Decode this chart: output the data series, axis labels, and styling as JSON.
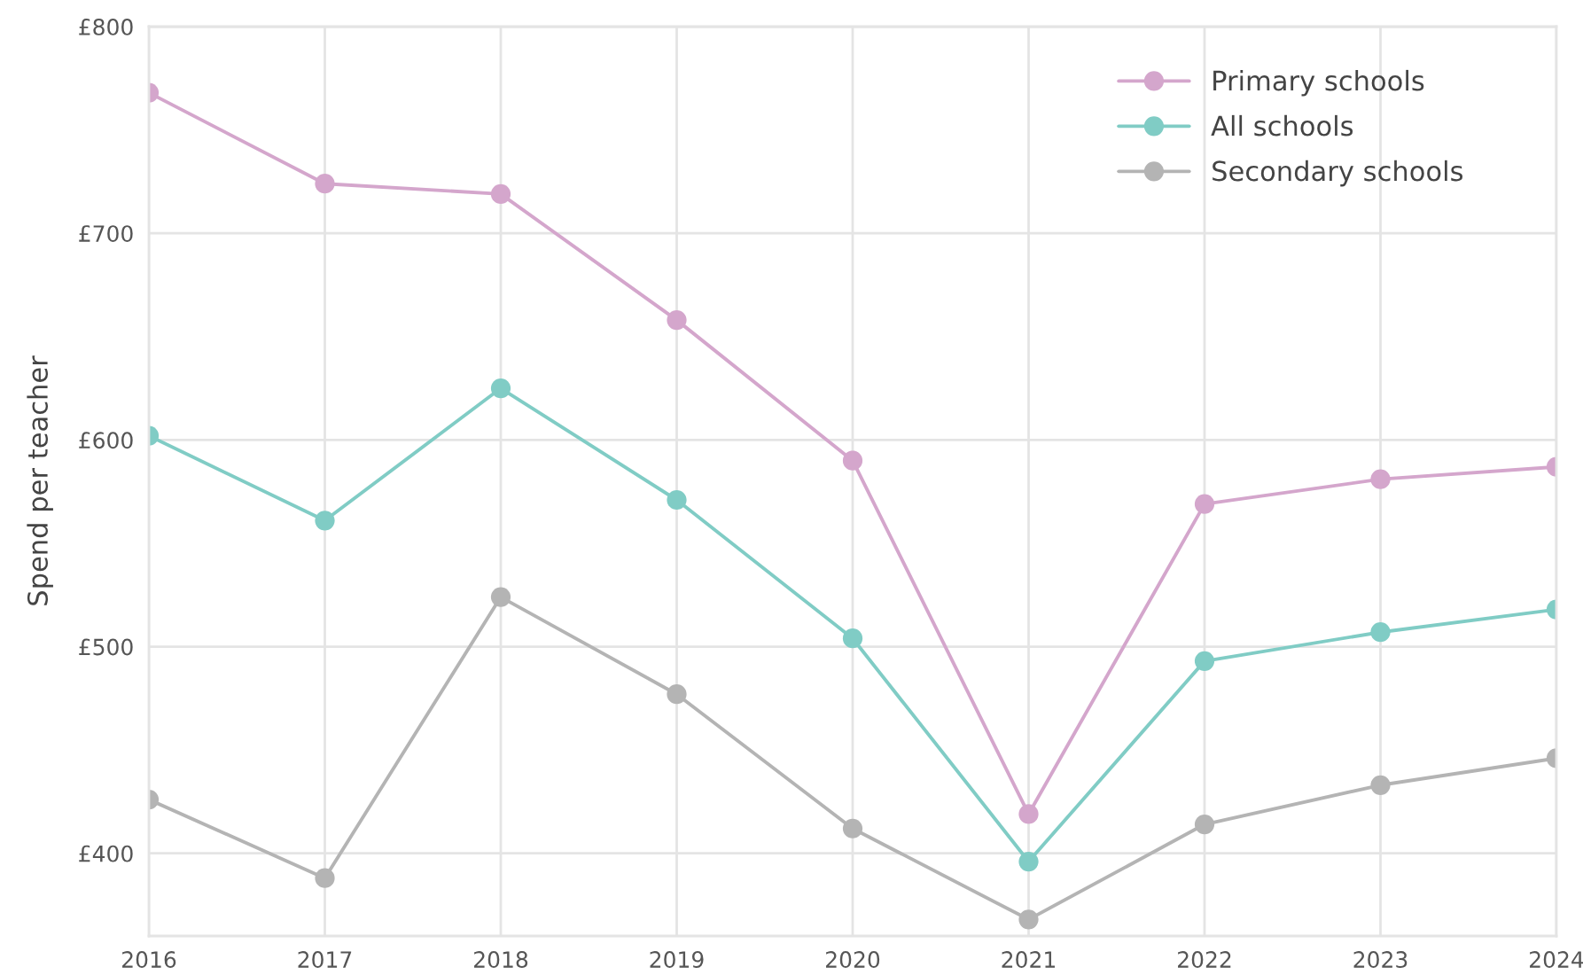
{
  "chart_data": {
    "type": "line",
    "ylabel": "Spend per teacher",
    "x": [
      2016,
      2017,
      2018,
      2019,
      2020,
      2021,
      2022,
      2023,
      2024
    ],
    "series": [
      {
        "name": "Primary schools",
        "color": "#d4a6cc",
        "values": [
          768,
          724,
          719,
          658,
          590,
          419,
          569,
          581,
          587
        ]
      },
      {
        "name": "All schools",
        "color": "#80ccc5",
        "values": [
          602,
          561,
          625,
          571,
          504,
          396,
          493,
          507,
          518
        ]
      },
      {
        "name": "Secondary schools",
        "color": "#b4b4b4",
        "values": [
          426,
          388,
          524,
          477,
          412,
          368,
          414,
          433,
          446
        ]
      }
    ],
    "xlim": [
      2016,
      2024
    ],
    "xticks": [
      2016,
      2017,
      2018,
      2019,
      2020,
      2021,
      2022,
      2023,
      2024
    ],
    "ylim": [
      360,
      800
    ],
    "yticks": [
      {
        "value": 400,
        "label": "£400"
      },
      {
        "value": 500,
        "label": "£500"
      },
      {
        "value": 600,
        "label": "£600"
      },
      {
        "value": 700,
        "label": "£700"
      },
      {
        "value": 800,
        "label": "£800"
      }
    ],
    "grid": true,
    "legend": "top right",
    "marker": "circle",
    "line_style": "solid"
  }
}
